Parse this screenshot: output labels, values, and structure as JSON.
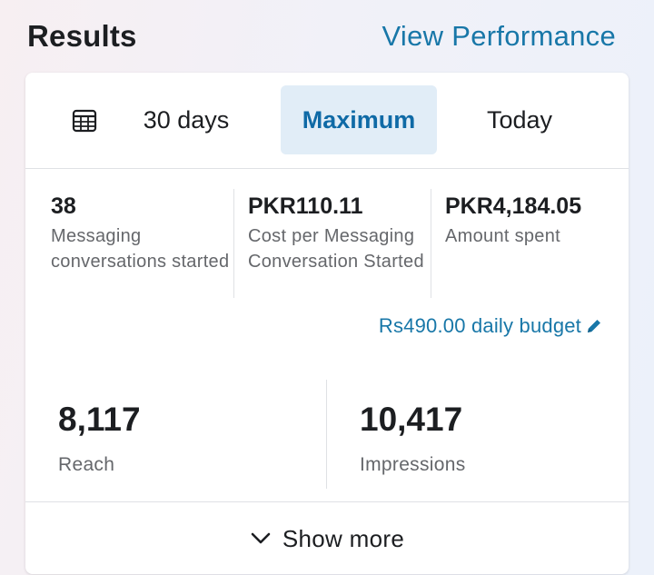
{
  "header": {
    "title": "Results",
    "view_performance": "View Performance"
  },
  "tabs": {
    "calendar_icon": "calendar-icon",
    "items": [
      {
        "label": "30 days",
        "selected": false
      },
      {
        "label": "Maximum",
        "selected": true
      },
      {
        "label": "Today",
        "selected": false
      }
    ]
  },
  "stats": [
    {
      "value": "38",
      "label": "Messaging conversations started"
    },
    {
      "value": "PKR110.11",
      "label": "Cost per Messaging Conversation Started"
    },
    {
      "value": "PKR4,184.05",
      "label": "Amount spent"
    }
  ],
  "budget": {
    "label": "Rs490.00 daily budget",
    "icon": "pencil-icon"
  },
  "metrics": [
    {
      "value": "8,117",
      "label": "Reach"
    },
    {
      "value": "10,417",
      "label": "Impressions"
    }
  ],
  "footer": {
    "show_more": "Show more",
    "icon": "chevron-down-icon"
  },
  "colors": {
    "accent": "#1877a8",
    "selected_tab_bg": "#e1edf7",
    "selected_tab_text": "#0f6aa6",
    "text_primary": "#1c1e21",
    "text_secondary": "#65676b"
  }
}
